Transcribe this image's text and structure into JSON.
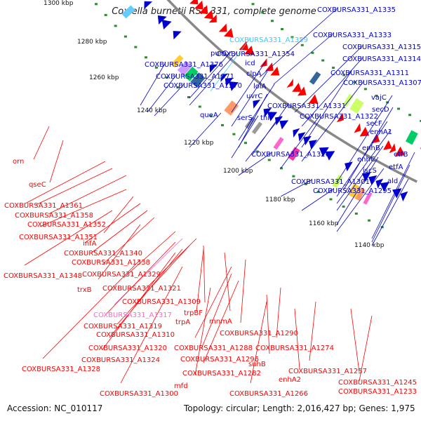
{
  "title": "Coxiella burnetii RSA 331, complete genome",
  "footer": {
    "accession": "Accession: NC_010117",
    "topology": "Topology: circular; Length: 2,016,427 bp; Genes: 1,975"
  },
  "ticks": [
    "1300 kbp",
    "1280 kbp",
    "1260 kbp",
    "1240 kbp",
    "1220 kbp",
    "1200 kbp",
    "1180 kbp",
    "1160 kbp",
    "1140 kbp"
  ],
  "colors": {
    "forward": "#0000cc",
    "reverse": "#ff0000",
    "rna": "#33ccff",
    "pseudo": "#ff66cc",
    "gc": "#2e8b2e",
    "backbone": "#888888"
  },
  "labels": {
    "COXBURSA331_A1335": "COXBURSA331_A1335",
    "COXBURSA331_A1359": "COXBURSA331_A1359",
    "COXBURSA331_A1333": "COXBURSA331_A1333",
    "purC": "purC",
    "COXBURSA331_A1354": "COXBURSA331_A1354",
    "COXBURSA331_A1315": "COXBURSA331_A1315",
    "COXBURSA331_A1376": "COXBURSA331_A1376",
    "icd": "icd",
    "COXBURSA331_A1314": "COXBURSA331_A1314",
    "COXBURSA331_A1371": "COXBURSA331_A1371",
    "clpA": "clpA",
    "COXBURSA331_A1311": "COXBURSA331_A1311",
    "COXBURSA331_A1370": "COXBURSA331_A1370",
    "lolA": "lolA",
    "COXBURSA331_A1307": "COXBURSA331_A1307",
    "uvrC": "uvrC",
    "vajC": "vajC",
    "COXBURSA331_A1331": "COXBURSA331_A1331",
    "queA": "queA",
    "secD": "secD",
    "serS": "serS",
    "thil": "thil",
    "COXBURSA331_A1322": "COXBURSA331_A1322",
    "secF": "secF",
    "enhA1": "enhA1",
    "enhB": "enhB",
    "COXBURSA331_A1326": "COXBURSA331_A1326",
    "etfB": "etfB",
    "enhC": "enhC",
    "etfA": "etfA",
    "iscS": "iscS",
    "COXBURSA331_A1301": "COXBURSA331_A1301",
    "ald": "ald",
    "COXBURSA331_A1295": "COXBURSA331_A1295",
    "orn": "orn",
    "qseC": "qseC",
    "COXBURSA331_A1361": "COXBURSA331_A1361",
    "COXBURSA331_A1358": "COXBURSA331_A1358",
    "COXBURSA331_A1352": "COXBURSA331_A1352",
    "COXBURSA331_A1351": "COXBURSA331_A1351",
    "infA": "infA",
    "COXBURSA331_A1340": "COXBURSA331_A1340",
    "COXBURSA331_A1338": "COXBURSA331_A1338",
    "COXBURSA331_A1348": "COXBURSA331_A1348",
    "COXBURSA331_A1329": "COXBURSA331_A1329",
    "trxB": "trxB",
    "COXBURSA331_A1321": "COXBURSA331_A1321",
    "COXBURSA331_A1309": "COXBURSA331_A1309",
    "COXBURSA331_A1317": "COXBURSA331_A1317",
    "trpBF": "trpBF",
    "COXBURSA331_A1319": "COXBURSA331_A1319",
    "trpA": "trpA",
    "mnmA": "mnmA",
    "COXBURSA331_A1310": "COXBURSA331_A1310",
    "COXBURSA331_A1290": "COXBURSA331_A1290",
    "COXBURSA331_A1320": "COXBURSA331_A1320",
    "COXBURSA331_A1288": "COXBURSA331_A1288",
    "COXBURSA331_A1274": "COXBURSA331_A1274",
    "COXBURSA331_A1324": "COXBURSA331_A1324",
    "COXBURSA331_A1296": "COXBURSA331_A1296",
    "COXBURSA331_A1328": "COXBURSA331_A1328",
    "suhB": "suhB",
    "COXBURSA331_A1257": "COXBURSA331_A1257",
    "COXBURSA331_A1282": "COXBURSA331_A1282",
    "enhA2": "enhA2",
    "COXBURSA331_A1245": "COXBURSA331_A1245",
    "mfd": "mfd",
    "COXBURSA331_A1300": "COXBURSA331_A1300",
    "COXBURSA331_A1266": "COXBURSA331_A1266",
    "COXBURSA331_A1233": "COXBURSA331_A1233"
  }
}
